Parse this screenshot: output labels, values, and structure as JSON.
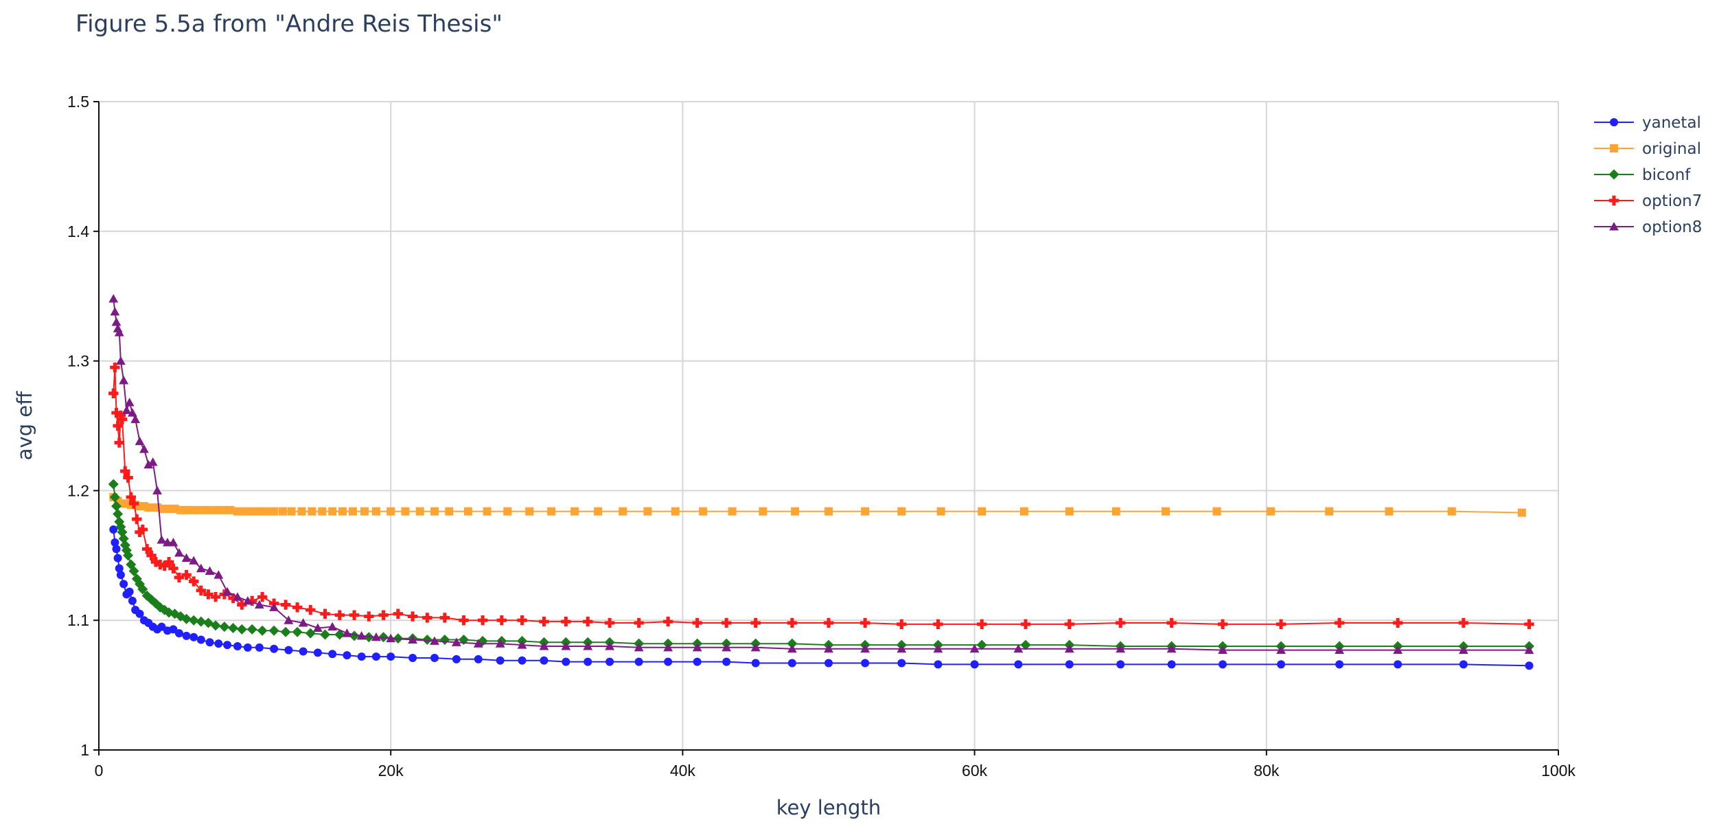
{
  "chart_data": {
    "type": "line",
    "title": "Figure 5.5a from \"Andre Reis Thesis\"",
    "xlabel": "key length",
    "ylabel": "avg eff",
    "xlim": [
      0,
      100000
    ],
    "ylim": [
      1,
      1.5
    ],
    "x_ticks": [
      {
        "value": 0,
        "label": "0"
      },
      {
        "value": 20000,
        "label": "20k"
      },
      {
        "value": 40000,
        "label": "40k"
      },
      {
        "value": 60000,
        "label": "60k"
      },
      {
        "value": 80000,
        "label": "80k"
      },
      {
        "value": 100000,
        "label": "100k"
      }
    ],
    "y_ticks": [
      {
        "value": 1,
        "label": "1"
      },
      {
        "value": 1.1,
        "label": "1.1"
      },
      {
        "value": 1.2,
        "label": "1.2"
      },
      {
        "value": 1.3,
        "label": "1.3"
      },
      {
        "value": 1.4,
        "label": "1.4"
      },
      {
        "value": 1.5,
        "label": "1.5"
      }
    ],
    "grid": true,
    "legend_position": "top-right",
    "series": [
      {
        "name": "yanetal",
        "color": "#1f1fff",
        "marker": "circle",
        "x": [
          1000,
          1100,
          1200,
          1300,
          1400,
          1500,
          1700,
          1900,
          2100,
          2300,
          2500,
          2800,
          3100,
          3400,
          3700,
          4000,
          4300,
          4700,
          5100,
          5500,
          6000,
          6500,
          7000,
          7600,
          8200,
          8800,
          9500,
          10200,
          11000,
          12000,
          13000,
          14000,
          15000,
          16000,
          17000,
          18000,
          19000,
          20000,
          21500,
          23000,
          24500,
          26000,
          27500,
          29000,
          30500,
          32000,
          33500,
          35000,
          37000,
          39000,
          41000,
          43000,
          45000,
          47500,
          50000,
          52500,
          55000,
          57500,
          60000,
          63000,
          66500,
          70000,
          73500,
          77000,
          81000,
          85000,
          89000,
          93500,
          98000
        ],
        "y": [
          1.17,
          1.16,
          1.155,
          1.148,
          1.14,
          1.135,
          1.128,
          1.12,
          1.122,
          1.115,
          1.108,
          1.105,
          1.1,
          1.098,
          1.095,
          1.093,
          1.095,
          1.092,
          1.093,
          1.09,
          1.088,
          1.087,
          1.085,
          1.083,
          1.082,
          1.081,
          1.08,
          1.079,
          1.079,
          1.078,
          1.077,
          1.076,
          1.075,
          1.074,
          1.073,
          1.072,
          1.072,
          1.072,
          1.071,
          1.071,
          1.07,
          1.07,
          1.069,
          1.069,
          1.069,
          1.068,
          1.068,
          1.068,
          1.068,
          1.068,
          1.068,
          1.068,
          1.067,
          1.067,
          1.067,
          1.067,
          1.067,
          1.066,
          1.066,
          1.066,
          1.066,
          1.066,
          1.066,
          1.066,
          1.066,
          1.066,
          1.066,
          1.066,
          1.065
        ]
      },
      {
        "name": "original",
        "color": "#ffa332",
        "marker": "square",
        "x": [
          1000,
          1300,
          1600,
          1900,
          2200,
          2500,
          2800,
          3100,
          3400,
          3700,
          4000,
          4400,
          4800,
          5200,
          5600,
          6000,
          6500,
          7000,
          7500,
          8000,
          8500,
          9000,
          9500,
          10000,
          10500,
          11000,
          11500,
          12000,
          12600,
          13200,
          13900,
          14600,
          15300,
          16000,
          16700,
          17400,
          18200,
          19000,
          20000,
          21000,
          22000,
          23000,
          24000,
          25300,
          26600,
          28000,
          29500,
          31000,
          32600,
          34200,
          35900,
          37600,
          39500,
          41400,
          43400,
          45500,
          47700,
          50000,
          52500,
          55000,
          57700,
          60500,
          63400,
          66500,
          69700,
          73100,
          76600,
          80300,
          84300,
          88400,
          92700,
          97500
        ],
        "y": [
          1.195,
          1.192,
          1.19,
          1.19,
          1.189,
          1.189,
          1.188,
          1.188,
          1.187,
          1.187,
          1.187,
          1.186,
          1.186,
          1.186,
          1.185,
          1.185,
          1.185,
          1.185,
          1.185,
          1.185,
          1.185,
          1.185,
          1.184,
          1.184,
          1.184,
          1.184,
          1.184,
          1.184,
          1.184,
          1.184,
          1.184,
          1.184,
          1.184,
          1.184,
          1.184,
          1.184,
          1.184,
          1.184,
          1.184,
          1.184,
          1.184,
          1.184,
          1.184,
          1.184,
          1.184,
          1.184,
          1.184,
          1.184,
          1.184,
          1.184,
          1.184,
          1.184,
          1.184,
          1.184,
          1.184,
          1.184,
          1.184,
          1.184,
          1.184,
          1.184,
          1.184,
          1.184,
          1.184,
          1.184,
          1.184,
          1.184,
          1.184,
          1.184,
          1.184,
          1.184,
          1.184,
          1.183
        ]
      },
      {
        "name": "biconf",
        "color": "#1a7f1a",
        "marker": "diamond",
        "x": [
          1000,
          1100,
          1200,
          1300,
          1400,
          1500,
          1600,
          1700,
          1800,
          1900,
          2000,
          2200,
          2400,
          2600,
          2800,
          3000,
          3300,
          3600,
          3900,
          4200,
          4500,
          4800,
          5200,
          5600,
          6000,
          6500,
          7000,
          7500,
          8000,
          8600,
          9200,
          9800,
          10500,
          11200,
          12000,
          12800,
          13600,
          14500,
          15500,
          16500,
          17500,
          18500,
          19500,
          20500,
          21500,
          22500,
          23700,
          25000,
          26300,
          27600,
          29000,
          30500,
          32000,
          33500,
          35000,
          37000,
          39000,
          41000,
          43000,
          45000,
          47500,
          50000,
          52500,
          55000,
          57500,
          60500,
          63500,
          66500,
          70000,
          73500,
          77000,
          81000,
          85000,
          89000,
          93500,
          98000
        ],
        "y": [
          1.205,
          1.195,
          1.188,
          1.182,
          1.176,
          1.172,
          1.168,
          1.163,
          1.158,
          1.154,
          1.15,
          1.143,
          1.138,
          1.132,
          1.128,
          1.124,
          1.119,
          1.116,
          1.113,
          1.11,
          1.108,
          1.106,
          1.105,
          1.103,
          1.101,
          1.1,
          1.099,
          1.098,
          1.096,
          1.095,
          1.094,
          1.093,
          1.093,
          1.092,
          1.092,
          1.091,
          1.091,
          1.09,
          1.089,
          1.089,
          1.088,
          1.087,
          1.087,
          1.086,
          1.086,
          1.085,
          1.085,
          1.085,
          1.084,
          1.084,
          1.084,
          1.083,
          1.083,
          1.083,
          1.083,
          1.082,
          1.082,
          1.082,
          1.082,
          1.082,
          1.082,
          1.081,
          1.081,
          1.081,
          1.081,
          1.081,
          1.081,
          1.081,
          1.08,
          1.08,
          1.08,
          1.08,
          1.08,
          1.08,
          1.08,
          1.08
        ]
      },
      {
        "name": "option7",
        "color": "#ff1a1a",
        "marker": "cross",
        "x": [
          1000,
          1100,
          1200,
          1300,
          1400,
          1500,
          1600,
          1800,
          2000,
          2200,
          2400,
          2600,
          2800,
          3000,
          3300,
          3600,
          3900,
          4200,
          4500,
          4800,
          5100,
          5500,
          6000,
          6500,
          7000,
          7500,
          8000,
          8600,
          9200,
          9800,
          10500,
          11200,
          12000,
          12800,
          13600,
          14500,
          15500,
          16500,
          17500,
          18500,
          19500,
          20500,
          21500,
          22500,
          23700,
          25000,
          26300,
          27600,
          29000,
          30500,
          32000,
          33500,
          35000,
          37000,
          39000,
          41000,
          43000,
          45000,
          47500,
          50000,
          52500,
          55000,
          57500,
          60500,
          63500,
          66500,
          70000,
          73500,
          77000,
          81000,
          85000,
          89000,
          93500,
          98000
        ],
        "y": [
          1.275,
          1.295,
          1.26,
          1.25,
          1.237,
          1.258,
          1.255,
          1.215,
          1.21,
          1.195,
          1.19,
          1.178,
          1.168,
          1.17,
          1.155,
          1.15,
          1.145,
          1.143,
          1.142,
          1.145,
          1.14,
          1.133,
          1.135,
          1.13,
          1.123,
          1.12,
          1.118,
          1.12,
          1.117,
          1.112,
          1.115,
          1.118,
          1.113,
          1.112,
          1.11,
          1.108,
          1.105,
          1.104,
          1.104,
          1.103,
          1.104,
          1.105,
          1.103,
          1.102,
          1.102,
          1.1,
          1.1,
          1.1,
          1.1,
          1.099,
          1.099,
          1.099,
          1.098,
          1.098,
          1.099,
          1.098,
          1.098,
          1.098,
          1.098,
          1.098,
          1.098,
          1.097,
          1.097,
          1.097,
          1.097,
          1.097,
          1.098,
          1.098,
          1.097,
          1.097,
          1.098,
          1.098,
          1.098,
          1.097
        ]
      },
      {
        "name": "option8",
        "color": "#7d1a85",
        "marker": "triangle-up",
        "x": [
          1000,
          1100,
          1200,
          1300,
          1400,
          1500,
          1700,
          1900,
          2100,
          2300,
          2500,
          2800,
          3100,
          3400,
          3700,
          4000,
          4300,
          4700,
          5100,
          5500,
          6000,
          6500,
          7000,
          7600,
          8200,
          8800,
          9500,
          10200,
          11000,
          12000,
          13000,
          14000,
          15000,
          16000,
          17000,
          18000,
          19000,
          20000,
          21500,
          23000,
          24500,
          26000,
          27500,
          29000,
          30500,
          32000,
          33500,
          35000,
          37000,
          39000,
          41000,
          43000,
          45000,
          47500,
          50000,
          52500,
          55000,
          57500,
          60000,
          63000,
          66500,
          70000,
          73500,
          77000,
          81000,
          85000,
          89000,
          93500,
          98000
        ],
        "y": [
          1.348,
          1.338,
          1.33,
          1.325,
          1.322,
          1.3,
          1.285,
          1.262,
          1.268,
          1.26,
          1.255,
          1.238,
          1.232,
          1.22,
          1.222,
          1.2,
          1.162,
          1.16,
          1.16,
          1.152,
          1.148,
          1.146,
          1.14,
          1.138,
          1.135,
          1.122,
          1.118,
          1.115,
          1.112,
          1.11,
          1.1,
          1.098,
          1.094,
          1.095,
          1.09,
          1.088,
          1.087,
          1.086,
          1.085,
          1.084,
          1.083,
          1.082,
          1.082,
          1.081,
          1.08,
          1.08,
          1.08,
          1.08,
          1.079,
          1.079,
          1.079,
          1.079,
          1.079,
          1.078,
          1.078,
          1.078,
          1.078,
          1.078,
          1.078,
          1.078,
          1.078,
          1.078,
          1.078,
          1.077,
          1.077,
          1.077,
          1.077,
          1.077,
          1.077
        ]
      }
    ]
  }
}
